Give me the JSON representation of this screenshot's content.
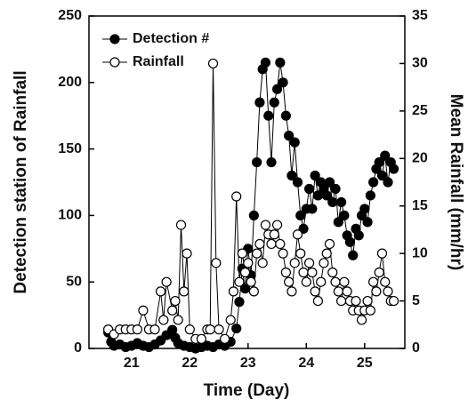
{
  "chart_data": {
    "type": "line",
    "x_label": "Time (Day)",
    "y_label": "Detection station of Rainfall",
    "y2_label": "Mean Rainfall (mm/hr)",
    "xlim": [
      20.27,
      25.69
    ],
    "xticks": [
      21,
      22,
      23,
      24,
      25
    ],
    "ylim": [
      0,
      250
    ],
    "yticks": [
      0,
      50,
      100,
      150,
      200,
      250
    ],
    "y2lim": [
      0,
      35
    ],
    "y2ticks": [
      0,
      5,
      10,
      15,
      20,
      25,
      30,
      35
    ],
    "legend": "upper left",
    "series": [
      {
        "name": "Detection #",
        "color": "#000000",
        "marker": "filled",
        "x": [
          20.6,
          20.65,
          20.7,
          20.8,
          20.9,
          21.0,
          21.1,
          21.2,
          21.3,
          21.4,
          21.5,
          21.6,
          21.7,
          21.75,
          21.8,
          21.9,
          22.0,
          22.1,
          22.2,
          22.3,
          22.4,
          22.5,
          22.6,
          22.7,
          22.8,
          22.85,
          22.9,
          22.95,
          23.0,
          23.05,
          23.1,
          23.15,
          23.2,
          23.25,
          23.3,
          23.35,
          23.4,
          23.45,
          23.5,
          23.55,
          23.6,
          23.65,
          23.7,
          23.75,
          23.8,
          23.85,
          23.9,
          23.95,
          24.0,
          24.05,
          24.1,
          24.15,
          24.2,
          24.25,
          24.3,
          24.35,
          24.4,
          24.45,
          24.5,
          24.55,
          24.6,
          24.65,
          24.7,
          24.75,
          24.8,
          24.85,
          24.9,
          24.95,
          25.0,
          25.05,
          25.1,
          25.15,
          25.2,
          25.25,
          25.3,
          25.35,
          25.4,
          25.45,
          25.5
        ],
        "values": [
          12,
          5,
          2,
          3,
          1,
          2,
          4,
          2,
          1,
          3,
          6,
          10,
          14,
          8,
          4,
          2,
          1,
          0,
          1,
          2,
          1,
          3,
          2,
          5,
          15,
          35,
          60,
          45,
          75,
          55,
          100,
          140,
          185,
          210,
          215,
          175,
          140,
          185,
          195,
          215,
          200,
          175,
          160,
          130,
          155,
          125,
          100,
          90,
          105,
          120,
          105,
          130,
          115,
          125,
          120,
          115,
          125,
          110,
          120,
          95,
          110,
          100,
          85,
          80,
          70,
          90,
          85,
          100,
          105,
          95,
          115,
          125,
          135,
          140,
          130,
          145,
          125,
          140,
          135
        ]
      },
      {
        "name": "Rainfall",
        "color": "#000000",
        "marker": "open",
        "axis": "y2",
        "x": [
          20.6,
          20.7,
          20.8,
          20.9,
          21.0,
          21.1,
          21.2,
          21.3,
          21.4,
          21.5,
          21.55,
          21.6,
          21.7,
          21.75,
          21.8,
          21.85,
          21.9,
          21.95,
          22.0,
          22.1,
          22.2,
          22.3,
          22.35,
          22.4,
          22.45,
          22.5,
          22.6,
          22.7,
          22.75,
          22.8,
          22.85,
          22.9,
          22.95,
          23.0,
          23.05,
          23.1,
          23.15,
          23.2,
          23.25,
          23.3,
          23.35,
          23.4,
          23.45,
          23.5,
          23.55,
          23.6,
          23.65,
          23.7,
          23.75,
          23.8,
          23.85,
          23.9,
          23.95,
          24.0,
          24.05,
          24.1,
          24.15,
          24.2,
          24.25,
          24.3,
          24.35,
          24.4,
          24.45,
          24.5,
          24.55,
          24.6,
          24.65,
          24.7,
          24.75,
          24.8,
          24.85,
          24.9,
          24.95,
          25.0,
          25.05,
          25.1,
          25.15,
          25.2,
          25.25,
          25.3,
          25.35,
          25.4,
          25.45,
          25.5
        ],
        "values": [
          2,
          1.5,
          2,
          2,
          2,
          2,
          4,
          2,
          2,
          6,
          3,
          7,
          4,
          5,
          3,
          13,
          6,
          10,
          2,
          1,
          1,
          2,
          2,
          30,
          9,
          2,
          1,
          3,
          6,
          16,
          7,
          10,
          8,
          9,
          7,
          6,
          10,
          11,
          9,
          13,
          12,
          11,
          12,
          13,
          11,
          10,
          8,
          7,
          6,
          9,
          12,
          10,
          8,
          7,
          9,
          8,
          6,
          5,
          7,
          9,
          10,
          11,
          8,
          7,
          6,
          5,
          7,
          6,
          5,
          4,
          5,
          4,
          3,
          4,
          5,
          4,
          7,
          6,
          8,
          10,
          7,
          6,
          5,
          5
        ]
      }
    ]
  }
}
